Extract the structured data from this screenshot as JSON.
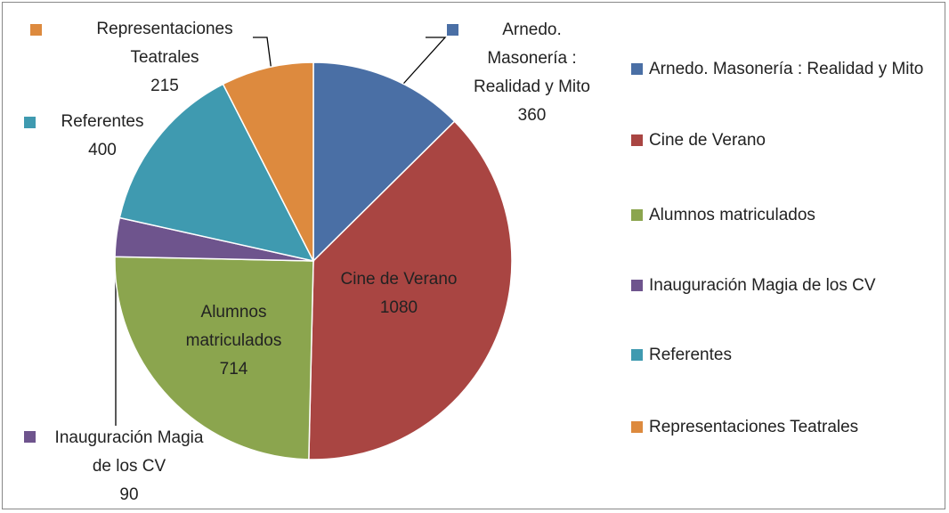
{
  "chart_data": {
    "type": "pie",
    "categories": [
      "Arnedo. Masonería : Realidad y Mito",
      "Cine de Verano",
      "Alumnos matriculados",
      "Inauguración Magia de los CV",
      "Referentes",
      "Representaciones Teatrales"
    ],
    "values": [
      360,
      1080,
      714,
      90,
      400,
      215
    ],
    "colors": [
      "#4a6fa5",
      "#a94542",
      "#8ba54e",
      "#6e548d",
      "#3f9ab0",
      "#dd8a3e"
    ],
    "legend": "right"
  }
}
